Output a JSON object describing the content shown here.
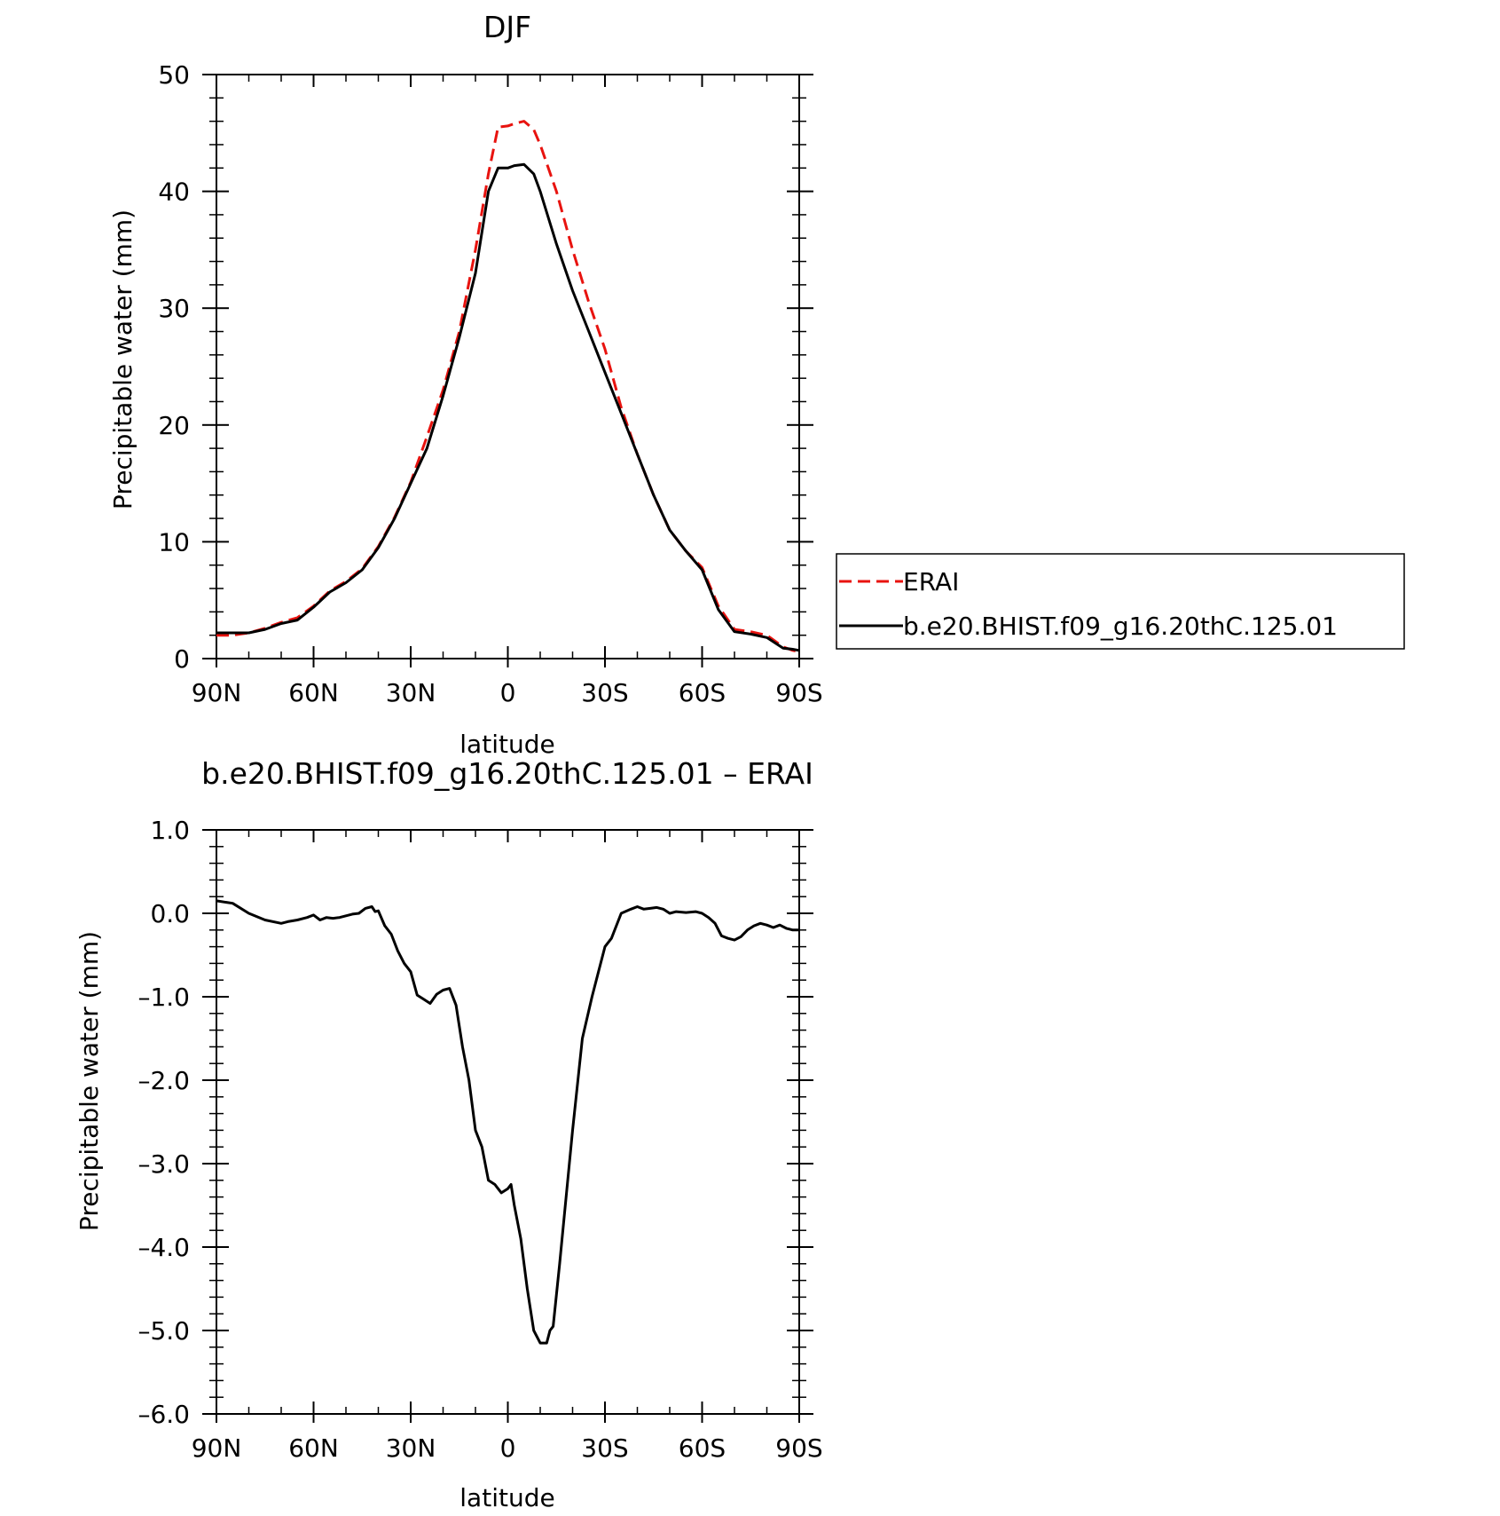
{
  "colors": {
    "erai": "#e8130f",
    "model": "#000000",
    "axis": "#000000"
  },
  "chart_data": [
    {
      "type": "line",
      "title": "DJF",
      "xlabel": "latitude",
      "ylabel": "Precipitable water (mm)",
      "xlim": [
        90,
        -90
      ],
      "ylim": [
        0,
        50
      ],
      "xtick_values": [
        90,
        60,
        30,
        0,
        -30,
        -60,
        -90
      ],
      "xtick_labels": [
        "90N",
        "60N",
        "30N",
        "0",
        "30S",
        "60S",
        "90S"
      ],
      "ytick_values": [
        0,
        10,
        20,
        30,
        40,
        50
      ],
      "ytick_labels": [
        "0",
        "10",
        "20",
        "30",
        "40",
        "50"
      ],
      "legend": {
        "placement": "right",
        "entries": [
          "ERAI",
          "b.e20.BHIST.f09_g16.20thC.125.01"
        ]
      },
      "series": [
        {
          "name": "ERAI",
          "style": "dashed",
          "color": "#e8130f",
          "x": [
            90,
            85,
            80,
            75,
            70,
            65,
            60,
            55,
            50,
            45,
            40,
            35,
            30,
            25,
            20,
            15,
            10,
            6,
            3,
            0,
            -2,
            -5,
            -8,
            -10,
            -15,
            -20,
            -25,
            -30,
            -35,
            -40,
            -45,
            -50,
            -55,
            -60,
            -65,
            -70,
            -75,
            -80,
            -85,
            -88,
            -90
          ],
          "y": [
            2.0,
            2.0,
            2.2,
            2.6,
            3.1,
            3.5,
            4.5,
            5.8,
            6.6,
            7.7,
            9.6,
            12.1,
            15.1,
            19.0,
            23.0,
            28.0,
            35.0,
            41.5,
            45.5,
            45.6,
            45.8,
            46.0,
            45.3,
            44.0,
            40.0,
            35.0,
            30.5,
            26.5,
            21.5,
            17.5,
            14.0,
            11.0,
            9.2,
            7.8,
            4.5,
            2.5,
            2.3,
            2.0,
            1.0,
            0.7,
            0.6
          ]
        },
        {
          "name": "b.e20.BHIST.f09_g16.20thC.125.01",
          "style": "solid",
          "color": "#000000",
          "x": [
            90,
            85,
            80,
            75,
            70,
            65,
            60,
            55,
            50,
            45,
            40,
            35,
            30,
            25,
            20,
            15,
            10,
            6,
            3,
            0,
            -2,
            -5,
            -8,
            -10,
            -15,
            -20,
            -25,
            -30,
            -35,
            -40,
            -45,
            -50,
            -55,
            -60,
            -65,
            -70,
            -75,
            -80,
            -85,
            -88,
            -90
          ],
          "y": [
            2.2,
            2.2,
            2.2,
            2.5,
            3.0,
            3.3,
            4.4,
            5.7,
            6.5,
            7.6,
            9.5,
            12.0,
            15.0,
            18.0,
            22.5,
            27.5,
            33.0,
            40.0,
            42.0,
            42.0,
            42.2,
            42.3,
            41.5,
            40.0,
            35.5,
            31.5,
            28.0,
            24.5,
            21.0,
            17.5,
            14.0,
            11.0,
            9.2,
            7.6,
            4.2,
            2.3,
            2.1,
            1.8,
            0.9,
            0.8,
            0.7
          ]
        }
      ]
    },
    {
      "type": "line",
      "title": "b.e20.BHIST.f09_g16.20thC.125.01 – ERAI",
      "xlabel": "latitude",
      "ylabel": "Precipitable water (mm)",
      "xlim": [
        90,
        -90
      ],
      "ylim": [
        -6,
        1
      ],
      "xtick_values": [
        90,
        60,
        30,
        0,
        -30,
        -60,
        -90
      ],
      "xtick_labels": [
        "90N",
        "60N",
        "30N",
        "0",
        "30S",
        "60S",
        "90S"
      ],
      "ytick_values": [
        1,
        0,
        -1,
        -2,
        -3,
        -4,
        -5,
        -6
      ],
      "ytick_labels": [
        "1.0",
        "0.0",
        "–1.0",
        "–2.0",
        "–3.0",
        "–4.0",
        "–5.0",
        "–6.0"
      ],
      "series": [
        {
          "color": "#000000",
          "style": "solid",
          "x": [
            90,
            85,
            80,
            75,
            70,
            68,
            65,
            62,
            60,
            58,
            56,
            54,
            52,
            50,
            48,
            46,
            44,
            42,
            41,
            40,
            38,
            36,
            34,
            32,
            30,
            28,
            26,
            24,
            22,
            20,
            18,
            16,
            14,
            12,
            10,
            8,
            6,
            4,
            3,
            2,
            0,
            -1,
            -2,
            -4,
            -6,
            -8,
            -10,
            -12,
            -13,
            -14,
            -16,
            -18,
            -20,
            -23,
            -26,
            -28,
            -30,
            -32,
            -35,
            -38,
            -40,
            -42,
            -44,
            -46,
            -48,
            -50,
            -52,
            -55,
            -58,
            -60,
            -62,
            -64,
            -66,
            -68,
            -70,
            -72,
            -74,
            -76,
            -78,
            -80,
            -82,
            -84,
            -86,
            -88,
            -90
          ],
          "y": [
            0.15,
            0.12,
            0.0,
            -0.08,
            -0.12,
            -0.1,
            -0.08,
            -0.05,
            -0.02,
            -0.08,
            -0.05,
            -0.06,
            -0.05,
            -0.03,
            -0.01,
            0.0,
            0.06,
            0.08,
            0.02,
            0.03,
            -0.15,
            -0.25,
            -0.45,
            -0.6,
            -0.7,
            -0.98,
            -1.03,
            -1.08,
            -0.97,
            -0.92,
            -0.9,
            -1.1,
            -1.6,
            -2.0,
            -2.6,
            -2.8,
            -3.2,
            -3.25,
            -3.3,
            -3.35,
            -3.3,
            -3.25,
            -3.5,
            -3.9,
            -4.5,
            -5.0,
            -5.15,
            -5.15,
            -5.0,
            -4.95,
            -4.2,
            -3.4,
            -2.6,
            -1.5,
            -1.0,
            -0.7,
            -0.4,
            -0.3,
            0.0,
            0.05,
            0.08,
            0.05,
            0.06,
            0.07,
            0.05,
            0.0,
            0.02,
            0.01,
            0.02,
            0.0,
            -0.05,
            -0.12,
            -0.27,
            -0.3,
            -0.32,
            -0.28,
            -0.2,
            -0.15,
            -0.12,
            -0.14,
            -0.17,
            -0.14,
            -0.18,
            -0.2,
            -0.2
          ]
        }
      ]
    }
  ]
}
